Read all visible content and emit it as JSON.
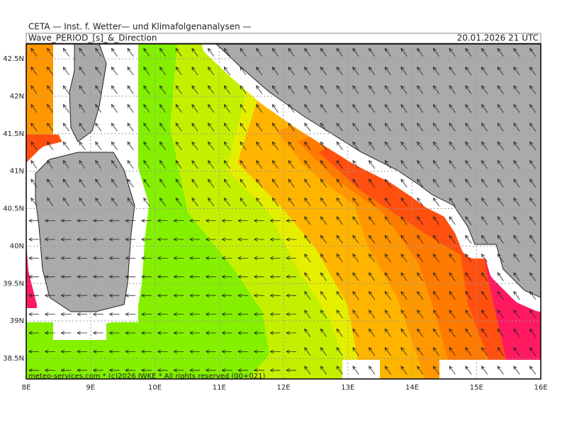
{
  "header": {
    "institute": "CETA — Inst. f. Wetter— und Klimafolgenanalysen —",
    "product": "Wave_PERIOD_[s]_&_Direction",
    "valid_time": "20.01.2026 21 UTC"
  },
  "map": {
    "lat_labels": [
      "42.5N",
      "42N",
      "41.5N",
      "41N",
      "40.5N",
      "40N",
      "39.5N",
      "39N",
      "38.5N"
    ],
    "lon_labels": [
      "8E",
      "9E",
      "10E",
      "11E",
      "12E",
      "13E",
      "14E",
      "15E",
      "16E"
    ]
  },
  "footer": "meteo-services.com * (c)2026 IWKE * All rights reserved (00+021)"
}
